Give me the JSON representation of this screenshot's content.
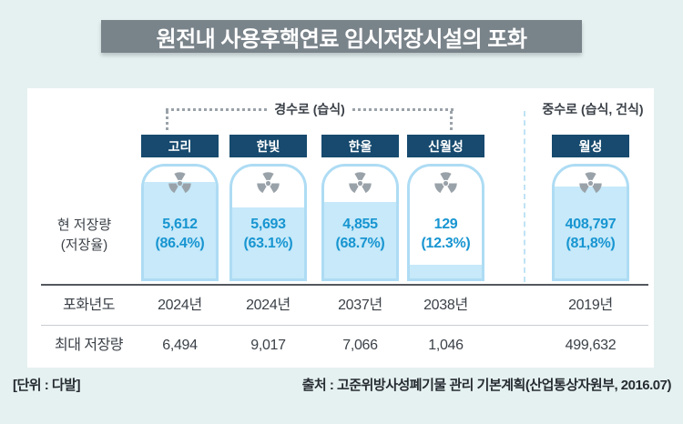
{
  "title": "원전내 사용후핵연료 임시저장시설의 포화",
  "groups": {
    "light_water": "경수로 (습식)",
    "heavy_water": "중수로 (습식, 건식)"
  },
  "row_labels": {
    "current_line1": "현 저장량",
    "current_line2": "(저장율)",
    "saturation_year": "포화년도",
    "max_capacity": "최대 저장량"
  },
  "plants": [
    {
      "name": "고리",
      "current": "5,612",
      "rate": "(86.4%)",
      "fill_pct": 86.4,
      "saturation_year": "2024년",
      "max_capacity": "6,494"
    },
    {
      "name": "한빛",
      "current": "5,693",
      "rate": "(63.1%)",
      "fill_pct": 63.1,
      "saturation_year": "2024년",
      "max_capacity": "9,017"
    },
    {
      "name": "한울",
      "current": "4,855",
      "rate": "(68.7%)",
      "fill_pct": 68.7,
      "saturation_year": "2037년",
      "max_capacity": "7,066"
    },
    {
      "name": "신월성",
      "current": "129",
      "rate": "(12.3%)",
      "fill_pct": 12.3,
      "saturation_year": "2038년",
      "max_capacity": "1,046"
    },
    {
      "name": "월성",
      "current": "408,797",
      "rate": "(81,8%)",
      "fill_pct": 81.8,
      "saturation_year": "2019년",
      "max_capacity": "499,632"
    }
  ],
  "footer": {
    "unit": "[단위 : 다발]",
    "source": "출처 : 고준위방사성폐기물 관리 기본계획(산업통상자원부, 2016.07)"
  },
  "colors": {
    "background": "#e5f1f0",
    "title_bar": "#79838a",
    "badge_navy": "#174a6e",
    "tank_border": "#aedcf4",
    "tank_fill": "#c7e9f9",
    "value_blue": "#1795d1",
    "icon_gray": "#9aa2a9",
    "text_dark": "#3b4148"
  },
  "icons": {
    "tank_symbol": "radiation-trefoil-icon"
  },
  "chart_data": {
    "type": "bar",
    "title": "원전내 사용후핵연료 임시저장시설의 포화",
    "categories": [
      "고리",
      "한빛",
      "한울",
      "신월성",
      "월성"
    ],
    "category_groups": {
      "경수로 (습식)": [
        "고리",
        "한빛",
        "한울",
        "신월성"
      ],
      "중수로 (습식, 건식)": [
        "월성"
      ]
    },
    "series": [
      {
        "name": "현 저장량 (다발)",
        "values": [
          5612,
          5693,
          4855,
          129,
          408797
        ]
      },
      {
        "name": "저장율 (%)",
        "values": [
          86.4,
          63.1,
          68.7,
          12.3,
          81.8
        ]
      },
      {
        "name": "최대 저장량 (다발)",
        "values": [
          6494,
          9017,
          7066,
          1046,
          499632
        ]
      }
    ],
    "saturation_years": [
      "2024년",
      "2024년",
      "2037년",
      "2038년",
      "2019년"
    ],
    "unit": "다발",
    "ylim": [
      0,
      100
    ],
    "legend_position": "none",
    "grid": false
  }
}
